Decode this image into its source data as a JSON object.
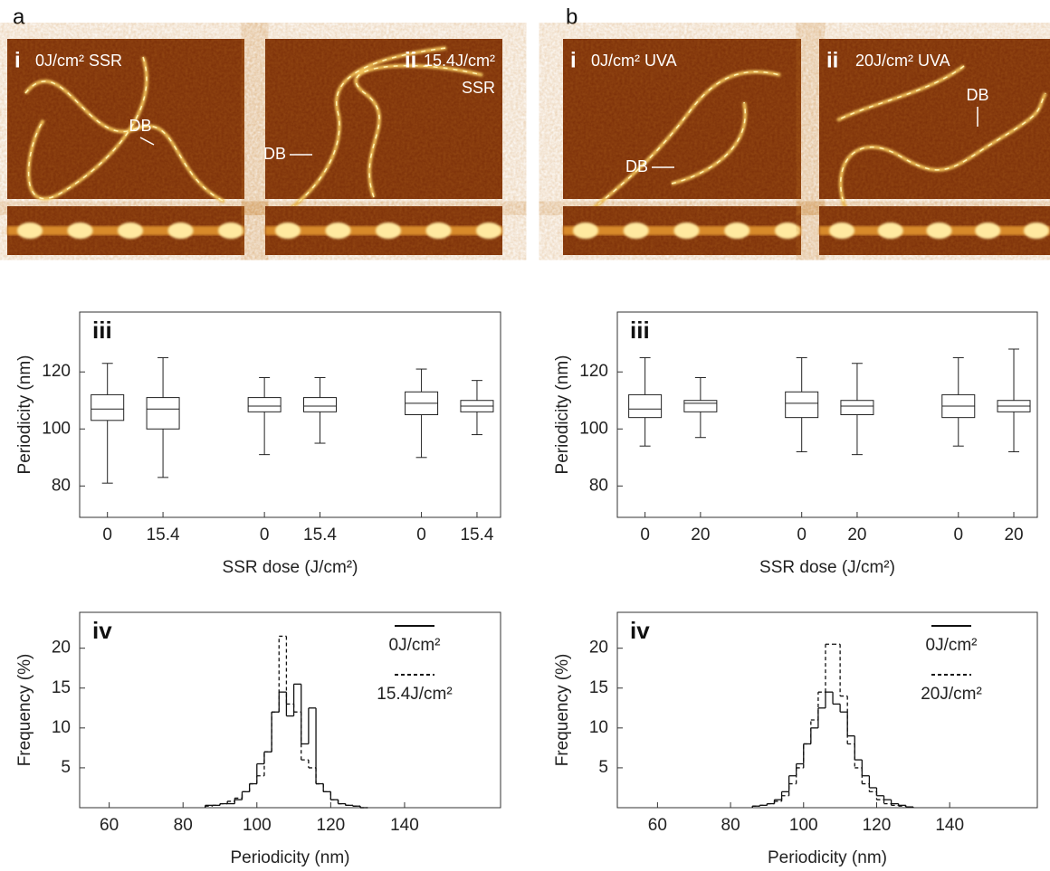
{
  "panels": [
    "a",
    "b"
  ],
  "images": [
    {
      "numeral": "i",
      "caption": [
        "0J/cm² SSR"
      ],
      "marker": "DB"
    },
    {
      "numeral": "ii",
      "caption": [
        "15.4J/cm²",
        "SSR"
      ],
      "marker": "DB"
    },
    {
      "numeral": "i",
      "caption": [
        "0J/cm² UVA"
      ],
      "marker": "DB"
    },
    {
      "numeral": "ii",
      "caption": [
        "20J/cm² UVA"
      ],
      "marker": "DB"
    }
  ],
  "chart_data": [
    {
      "type": "box",
      "panel_label": "iii",
      "ylabel": "Periodicity (nm)",
      "xlabel": "SSR dose (J/cm²)",
      "categories": [
        "0",
        "15.4",
        "0",
        "15.4",
        "0",
        "15.4"
      ],
      "boxes": [
        {
          "low": 81,
          "q1": 103,
          "median": 107,
          "q3": 112,
          "high": 123
        },
        {
          "low": 83,
          "q1": 100,
          "median": 107,
          "q3": 111,
          "high": 125
        },
        {
          "low": 91,
          "q1": 106,
          "median": 108,
          "q3": 111,
          "high": 118
        },
        {
          "low": 95,
          "q1": 106,
          "median": 108,
          "q3": 111,
          "high": 118
        },
        {
          "low": 90,
          "q1": 105,
          "median": 109,
          "q3": 113,
          "high": 121
        },
        {
          "low": 98,
          "q1": 106,
          "median": 108,
          "q3": 110,
          "high": 117
        }
      ],
      "ylim": [
        69,
        141
      ],
      "yticks": [
        80,
        100,
        120
      ],
      "color": "#222"
    },
    {
      "type": "box",
      "panel_label": "iii",
      "ylabel": "Periodicity (nm)",
      "xlabel": "SSR dose (J/cm²)",
      "categories": [
        "0",
        "20",
        "0",
        "20",
        "0",
        "20"
      ],
      "boxes": [
        {
          "low": 94,
          "q1": 104,
          "median": 107,
          "q3": 112,
          "high": 125
        },
        {
          "low": 97,
          "q1": 106,
          "median": 109,
          "q3": 110,
          "high": 118
        },
        {
          "low": 92,
          "q1": 104,
          "median": 109,
          "q3": 113,
          "high": 125
        },
        {
          "low": 91,
          "q1": 105,
          "median": 108,
          "q3": 110,
          "high": 123
        },
        {
          "low": 94,
          "q1": 104,
          "median": 108,
          "q3": 112,
          "high": 125
        },
        {
          "low": 92,
          "q1": 106,
          "median": 108,
          "q3": 110,
          "high": 128
        }
      ],
      "ylim": [
        69,
        141
      ],
      "yticks": [
        80,
        100,
        120
      ],
      "color": "#222"
    },
    {
      "type": "histogram",
      "panel_label": "iv",
      "ylabel": "Frequency (%)",
      "xlabel": "Periodicity (nm)",
      "bins": [
        86,
        88,
        90,
        92,
        94,
        96,
        98,
        100,
        102,
        104,
        106,
        108,
        110,
        112,
        114,
        116,
        118,
        120,
        122,
        124,
        126,
        128,
        130
      ],
      "series": [
        {
          "name": "0J/cm²",
          "color": "#111",
          "dash": false,
          "values": [
            0.3,
            0.3,
            0.5,
            0.5,
            1,
            2,
            3,
            5.5,
            7,
            12,
            14.5,
            11.5,
            15.5,
            8,
            12.5,
            3,
            2,
            1,
            0.5,
            0.3,
            0.2,
            0
          ]
        },
        {
          "name": "15.4J/cm²",
          "color": "#111",
          "dash": true,
          "values": [
            0.2,
            0.3,
            0.5,
            0.8,
            1.2,
            2,
            3,
            4,
            7,
            12,
            21.5,
            13,
            12,
            6,
            5,
            3,
            2,
            1,
            0.5,
            0.3,
            0.2,
            0
          ]
        }
      ],
      "xlim": [
        52,
        166
      ],
      "xticks": [
        60,
        80,
        100,
        120,
        140
      ],
      "ylim": [
        0,
        24.5
      ],
      "yticks": [
        5,
        10,
        15,
        20
      ],
      "legend": "upper right"
    },
    {
      "type": "histogram",
      "panel_label": "iv",
      "ylabel": "Frequency (%)",
      "xlabel": "Periodicity (nm)",
      "bins": [
        86,
        88,
        90,
        92,
        94,
        96,
        98,
        100,
        102,
        104,
        106,
        108,
        110,
        112,
        114,
        116,
        118,
        120,
        122,
        124,
        126,
        128,
        130
      ],
      "series": [
        {
          "name": "0J/cm²",
          "color": "#111",
          "dash": false,
          "values": [
            0.2,
            0.3,
            0.5,
            1,
            2,
            4,
            5.5,
            8,
            10,
            12.5,
            14.5,
            13,
            12,
            9,
            6,
            4,
            2.5,
            1.5,
            1,
            0.5,
            0.3,
            0.1
          ]
        },
        {
          "name": "20J/cm²",
          "color": "#111",
          "dash": true,
          "values": [
            0.2,
            0.3,
            0.5,
            0.8,
            1.5,
            3,
            5,
            8,
            11,
            14.5,
            20.5,
            20.5,
            14,
            8,
            5,
            3,
            2,
            1,
            0.5,
            0.3,
            0.2,
            0.1
          ]
        }
      ],
      "xlim": [
        49,
        164
      ],
      "xticks": [
        60,
        80,
        100,
        120,
        140
      ],
      "ylim": [
        0,
        24.5
      ],
      "yticks": [
        5,
        10,
        15,
        20
      ],
      "legend": "upper right"
    }
  ]
}
